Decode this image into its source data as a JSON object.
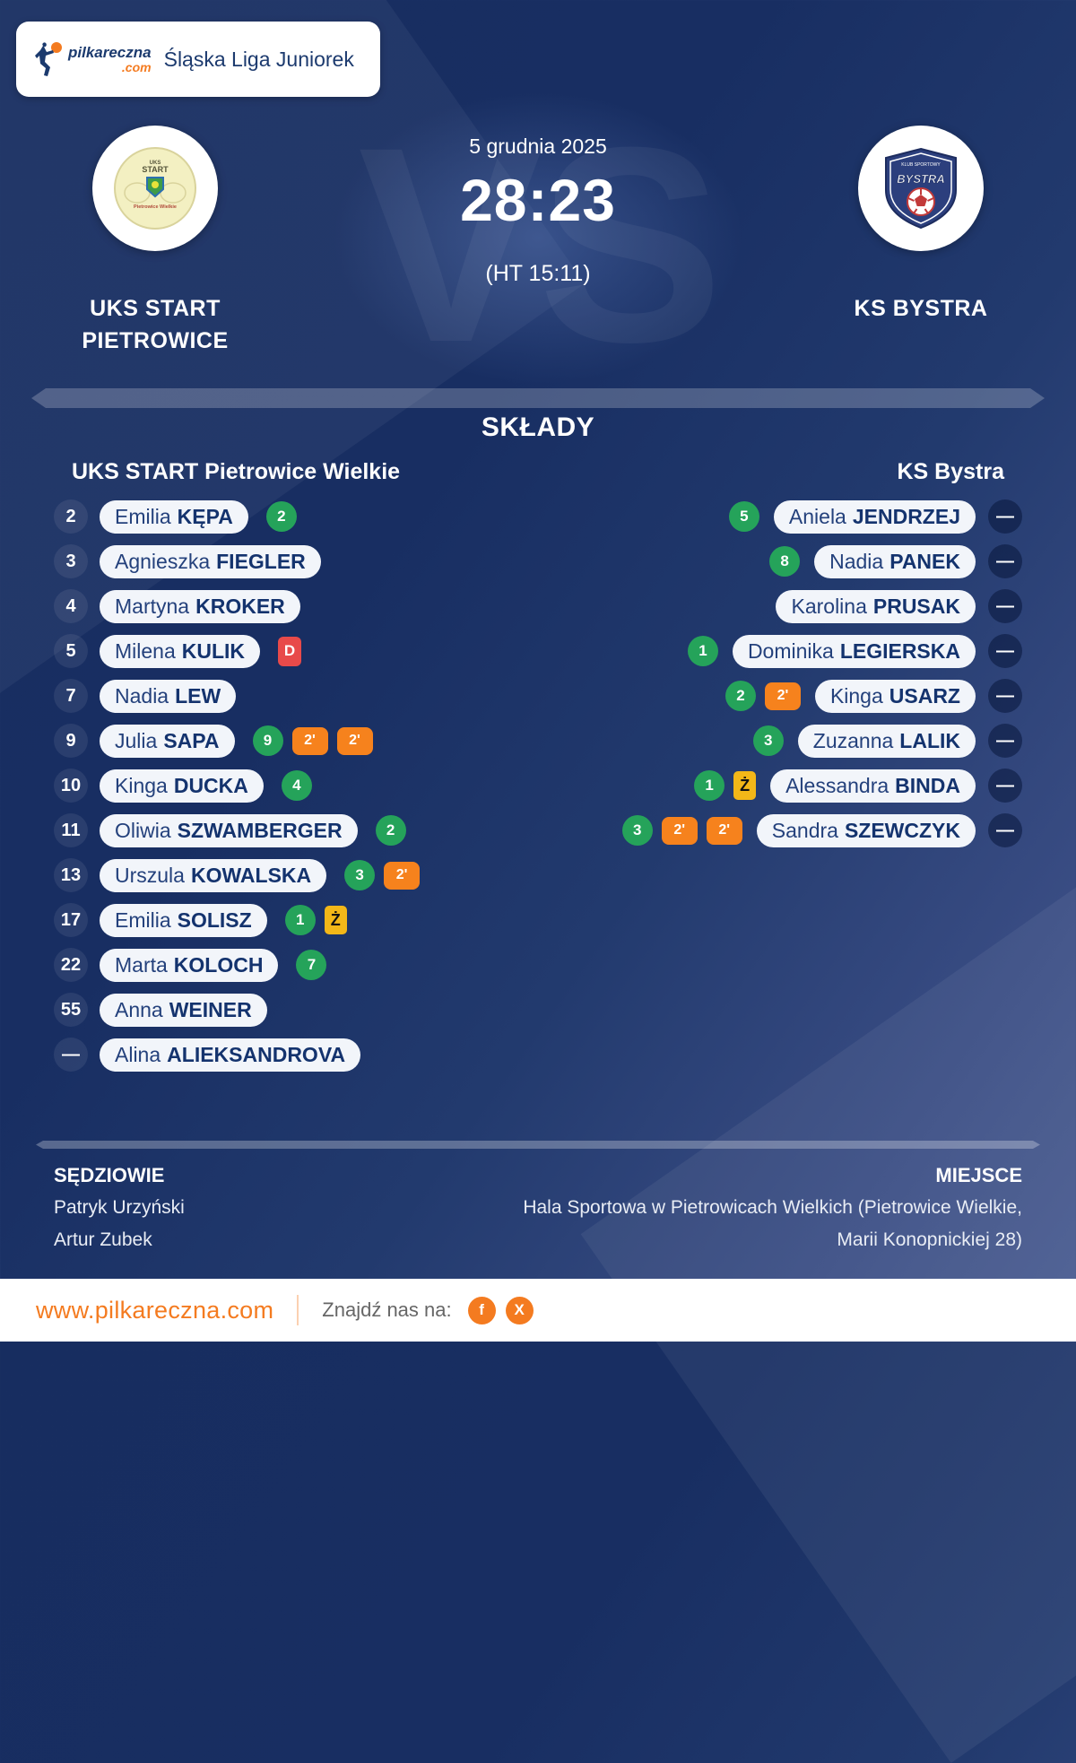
{
  "header": {
    "league": "Śląska Liga Juniorek",
    "logo": {
      "name": "pilkareczna",
      "tld": ".com"
    }
  },
  "match": {
    "date": "5 grudnia 2025",
    "score": "28:23",
    "halftime": "(HT 15:11)",
    "vs": "VS",
    "home_name": "UKS START PIETROWICE",
    "away_name": "KS BYSTRA"
  },
  "lineups": {
    "title": "SKŁADY",
    "home_header": "UKS START Pietrowice Wielkie",
    "away_header": "KS Bystra",
    "home_players": [
      {
        "number": "2",
        "first": "Emilia",
        "last": "KĘPA",
        "badges": [
          {
            "type": "goal",
            "text": "2"
          }
        ]
      },
      {
        "number": "3",
        "first": "Agnieszka",
        "last": "FIEGLER",
        "badges": []
      },
      {
        "number": "4",
        "first": "Martyna",
        "last": "KROKER",
        "badges": []
      },
      {
        "number": "5",
        "first": "Milena",
        "last": "KULIK",
        "badges": [
          {
            "type": "red",
            "text": "D"
          }
        ]
      },
      {
        "number": "7",
        "first": "Nadia",
        "last": "LEW",
        "badges": []
      },
      {
        "number": "9",
        "first": "Julia",
        "last": "SAPA",
        "badges": [
          {
            "type": "goal",
            "text": "9"
          },
          {
            "type": "susp",
            "text": "2'"
          },
          {
            "type": "susp",
            "text": "2'"
          }
        ]
      },
      {
        "number": "10",
        "first": "Kinga",
        "last": "DUCKA",
        "badges": [
          {
            "type": "goal",
            "text": "4"
          }
        ]
      },
      {
        "number": "11",
        "first": "Oliwia",
        "last": "SZWAMBERGER",
        "badges": [
          {
            "type": "goal",
            "text": "2"
          }
        ]
      },
      {
        "number": "13",
        "first": "Urszula",
        "last": "KOWALSKA",
        "badges": [
          {
            "type": "goal",
            "text": "3"
          },
          {
            "type": "susp",
            "text": "2'"
          }
        ]
      },
      {
        "number": "17",
        "first": "Emilia",
        "last": "SOLISZ",
        "badges": [
          {
            "type": "goal",
            "text": "1"
          },
          {
            "type": "yellow",
            "text": "Ż"
          }
        ]
      },
      {
        "number": "22",
        "first": "Marta",
        "last": "KOLOCH",
        "badges": [
          {
            "type": "goal",
            "text": "7"
          }
        ]
      },
      {
        "number": "55",
        "first": "Anna",
        "last": "WEINER",
        "badges": []
      },
      {
        "number": "—",
        "first": "Alina",
        "last": "ALIEKSANDROVA",
        "badges": []
      }
    ],
    "away_players": [
      {
        "number": "—",
        "first": "Aniela",
        "last": "JENDRZEJ",
        "badges": [
          {
            "type": "goal",
            "text": "5"
          }
        ]
      },
      {
        "number": "—",
        "first": "Nadia",
        "last": "PANEK",
        "badges": [
          {
            "type": "goal",
            "text": "8"
          }
        ]
      },
      {
        "number": "—",
        "first": "Karolina",
        "last": "PRUSAK",
        "badges": []
      },
      {
        "number": "—",
        "first": "Dominika",
        "last": "LEGIERSKA",
        "badges": [
          {
            "type": "goal",
            "text": "1"
          }
        ]
      },
      {
        "number": "—",
        "first": "Kinga",
        "last": "USARZ",
        "badges": [
          {
            "type": "goal",
            "text": "2"
          },
          {
            "type": "susp",
            "text": "2'"
          }
        ]
      },
      {
        "number": "—",
        "first": "Zuzanna",
        "last": "LALIK",
        "badges": [
          {
            "type": "goal",
            "text": "3"
          }
        ]
      },
      {
        "number": "—",
        "first": "Alessandra",
        "last": "BINDA",
        "badges": [
          {
            "type": "goal",
            "text": "1"
          },
          {
            "type": "yellow",
            "text": "Ż"
          }
        ]
      },
      {
        "number": "—",
        "first": "Sandra",
        "last": "SZEWCZYK",
        "badges": [
          {
            "type": "goal",
            "text": "3"
          },
          {
            "type": "susp",
            "text": "2'"
          },
          {
            "type": "susp",
            "text": "2'"
          }
        ]
      }
    ]
  },
  "info": {
    "referees_label": "SĘDZIOWIE",
    "referees": [
      "Patryk Urzyński",
      "Artur Zubek"
    ],
    "venue_label": "MIEJSCE",
    "venue": "Hala Sportowa w Pietrowicach Wielkich (Pietrowice Wielkie, Marii Konopnickiej 28)"
  },
  "footer": {
    "site": "www.pilkareczna.com",
    "find_us": "Znajdź nas na:",
    "social": [
      {
        "name": "facebook",
        "glyph": "f"
      },
      {
        "name": "x",
        "glyph": "X"
      }
    ]
  },
  "colors": {
    "accent_orange": "#f47b20",
    "goal_green": "#25a35a",
    "susp_orange": "#f6821d",
    "yellow_card": "#f3b718",
    "red_card": "#e84a4a",
    "navy": "#1b3a6e"
  }
}
